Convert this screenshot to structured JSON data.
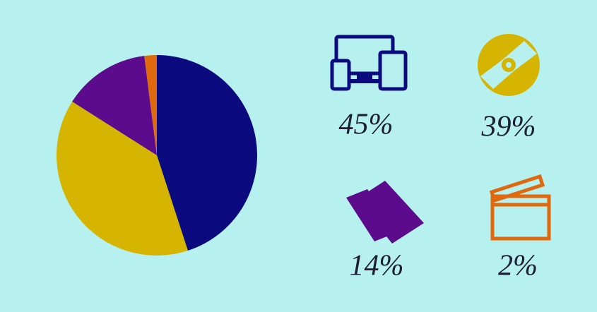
{
  "chart_data": {
    "type": "pie",
    "categories": [
      null,
      null,
      null,
      null
    ],
    "values": [
      45,
      39,
      14,
      2
    ],
    "value_labels": [
      "45%",
      "39%",
      "14%",
      "2%"
    ],
    "colors": [
      "#0b0b7f",
      "#d6b502",
      "#5b0b8b",
      "#e0690e"
    ]
  }
}
